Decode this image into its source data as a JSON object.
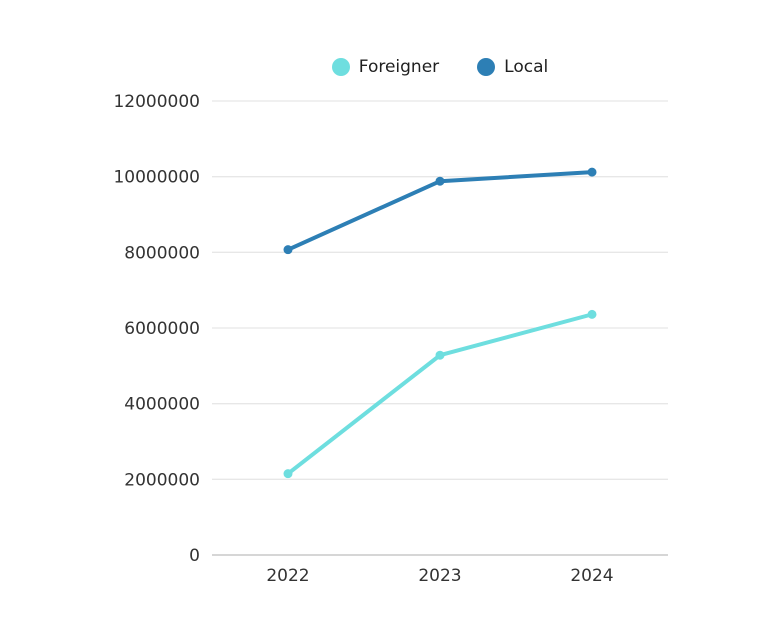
{
  "chart_data": {
    "type": "line",
    "title": "",
    "categories": [
      "2022",
      "2023",
      "2024"
    ],
    "series": [
      {
        "name": "Foreigner",
        "color": "#6EDEDF",
        "values": [
          2150000,
          5280000,
          6360000
        ]
      },
      {
        "name": "Local",
        "color": "#2D7FB5",
        "values": [
          8070000,
          9880000,
          10120000
        ]
      }
    ],
    "ylim": [
      0,
      12000000
    ],
    "ytick_step": 2000000,
    "ytick_labels": [
      "0",
      "2000000",
      "4000000",
      "6000000",
      "8000000",
      "10000000",
      "12000000"
    ],
    "grid": true,
    "legend_position": "top",
    "colors": {
      "grid_line": "#e7e7e7",
      "axis_line": "#c9c9c9",
      "tick_text": "#333333",
      "background": "#ffffff"
    }
  }
}
